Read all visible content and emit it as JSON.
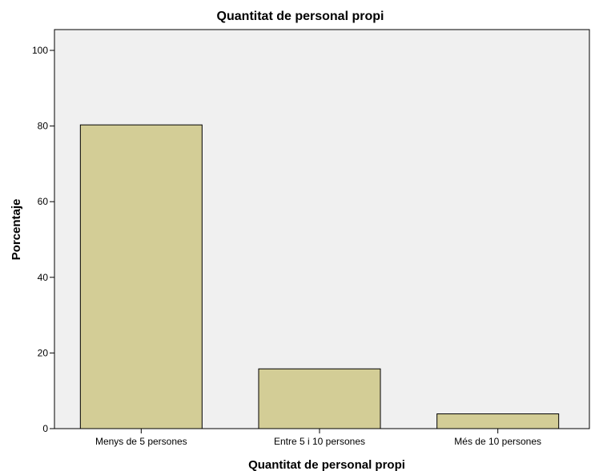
{
  "chart_data": {
    "type": "bar",
    "title": "Quantitat de personal propi",
    "xlabel": "Quantitat de personal propi",
    "ylabel": "Porcentaje",
    "categories": [
      "Menys de 5 persones",
      "Entre 5 i 10 persones",
      "Més de 10 persones"
    ],
    "values": [
      80.3,
      15.8,
      3.9
    ],
    "ylim": [
      0,
      100
    ],
    "yticks": [
      0,
      20,
      40,
      60,
      80,
      100
    ],
    "grid": false,
    "legend": "none",
    "colors": {
      "bar_fill": "#d3cd96",
      "bar_stroke": "#000000",
      "plot_background": "#f0f0f0"
    }
  }
}
